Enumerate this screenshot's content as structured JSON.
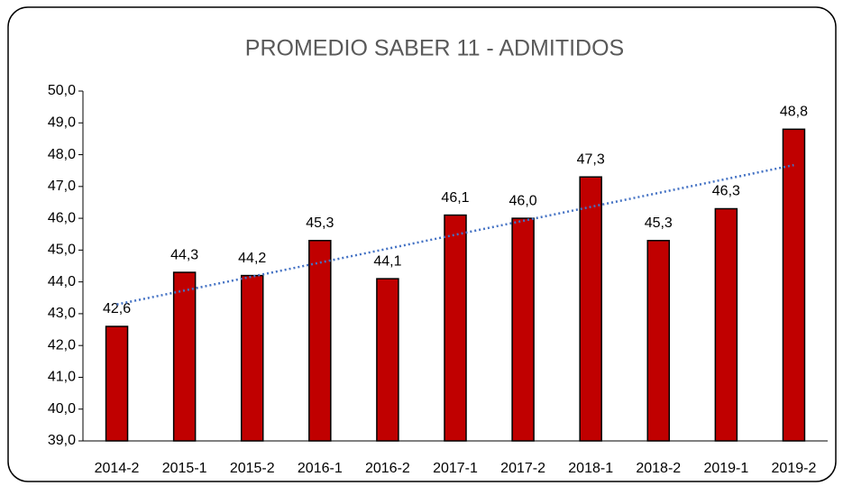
{
  "chart_data": {
    "type": "bar",
    "title": "PROMEDIO SABER 11 - ADMITIDOS",
    "categories": [
      "2014-2",
      "2015-1",
      "2015-2",
      "2016-1",
      "2016-2",
      "2017-1",
      "2017-2",
      "2018-1",
      "2018-2",
      "2019-1",
      "2019-2"
    ],
    "values": [
      42.6,
      44.3,
      44.2,
      45.3,
      44.1,
      46.1,
      46.0,
      47.3,
      45.3,
      46.3,
      48.8
    ],
    "value_labels": [
      "42,6",
      "44,3",
      "44,2",
      "45,3",
      "44,1",
      "46,1",
      "46,0",
      "47,3",
      "45,3",
      "46,3",
      "48,8"
    ],
    "color": "#c00000",
    "trendline": "linear",
    "trendline_color": "#4472c4",
    "ylim": [
      39,
      50
    ],
    "yticks": [
      {
        "value": 39,
        "label": "39,0"
      },
      {
        "value": 40,
        "label": "40,0"
      },
      {
        "value": 41,
        "label": "41,0"
      },
      {
        "value": 42,
        "label": "42,0"
      },
      {
        "value": 43,
        "label": "43,0"
      },
      {
        "value": 44,
        "label": "44,0"
      },
      {
        "value": 45,
        "label": "45,0"
      },
      {
        "value": 46,
        "label": "46,0"
      },
      {
        "value": 47,
        "label": "47,0"
      },
      {
        "value": 48,
        "label": "48,0"
      },
      {
        "value": 49,
        "label": "49,0"
      },
      {
        "value": 50,
        "label": "50,0"
      }
    ]
  }
}
